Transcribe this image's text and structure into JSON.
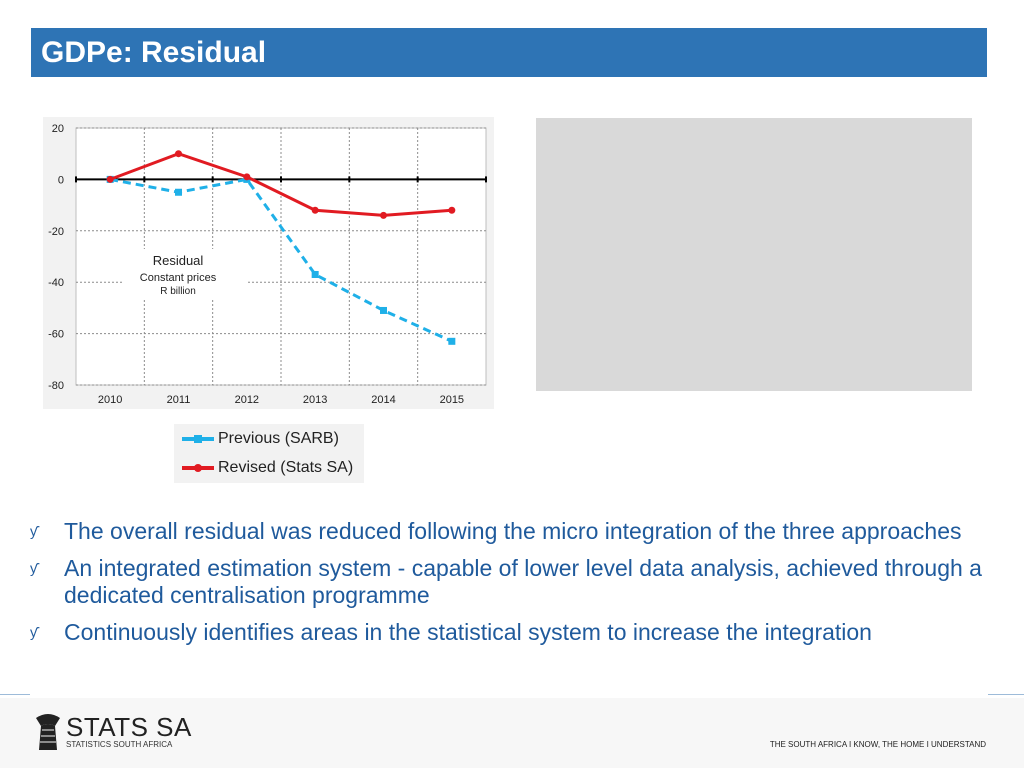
{
  "header": {
    "title": "GDPe: Residual"
  },
  "chart_data": {
    "type": "line",
    "categories": [
      "2010",
      "2011",
      "2012",
      "2013",
      "2014",
      "2015"
    ],
    "series": [
      {
        "name": "Previous (SARB)",
        "values": [
          0,
          -5,
          0,
          -37,
          -51,
          -63
        ],
        "color": "#1fb0e8",
        "style": "dashed"
      },
      {
        "name": "Revised (Stats SA)",
        "values": [
          0,
          10,
          1,
          -12,
          -14,
          -12
        ],
        "color": "#e11b22",
        "style": "solid"
      }
    ],
    "ylim": [
      -80,
      20
    ],
    "yticks": [
      "20",
      "0",
      "-20",
      "-40",
      "-60",
      "-80"
    ],
    "grid": true,
    "annotation": {
      "line1": "Residual",
      "line2": "Constant prices",
      "line3": "R billion"
    },
    "legend_placement": "below"
  },
  "bullets": [
    "The overall residual was reduced  following the micro integration of the three approaches",
    "An integrated estimation system  - capable of lower level data analysis, achieved through a dedicated centralisation programme",
    "Continuously identifies areas in the statistical system to increase the integration"
  ],
  "bullet_symbol": "ƴ",
  "footer": {
    "logo_name": "STATS SA",
    "logo_sub": "STATISTICS SOUTH AFRICA",
    "tagline": "THE SOUTH AFRICA I KNOW, THE HOME I UNDERSTAND"
  }
}
